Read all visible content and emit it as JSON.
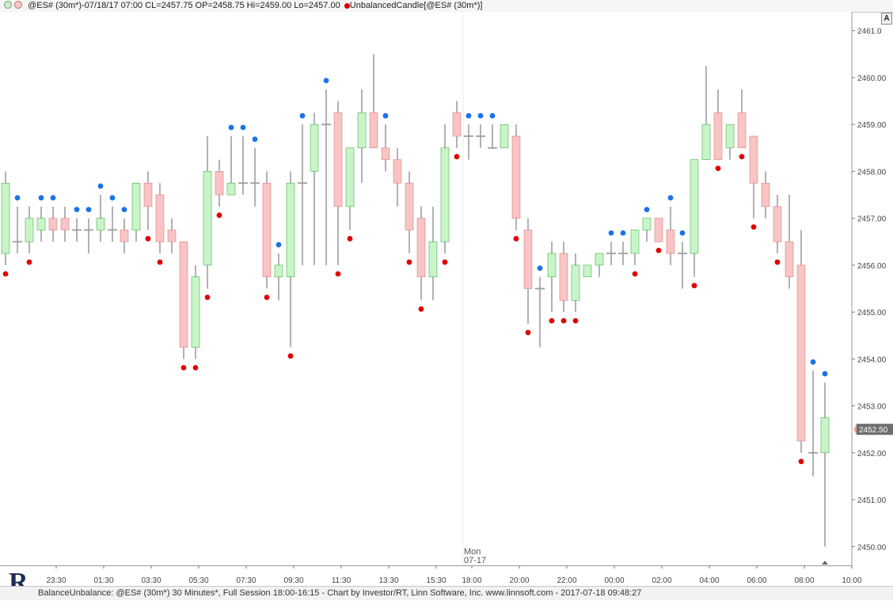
{
  "header": {
    "symbol_info": "@ES# (30m*)-07/18/17 07:00 CL=2457.75 OP=2458.75 Hi=2459.00 Lo=2457.00",
    "study_label": "UnbalancedCandle[@ES# (30m*)]",
    "status_dot_colors": [
      "#cfe8cf",
      "#f5c6c6"
    ],
    "study_dot_color": "#d90000"
  },
  "corner_button": "A",
  "footer": {
    "text": "BalanceUnbalance: @ES# (30m*) 30 Minutes*, Full Session 18:00-16:15 - Chart by Investor/RT, Linn Software, Inc. www.linnsoft.com - 2017-07-18 09:48:27"
  },
  "logo": {
    "letter": "R"
  },
  "colors": {
    "up_fill": "#c8f5c8",
    "up_border": "#4caf50",
    "down_fill": "#f8c4c4",
    "down_border": "#d98080",
    "wick": "#9e9e9e",
    "marker_high": "#1a73e8",
    "marker_low": "#e00000",
    "price_box": "#6e6e6e",
    "grid": "#e6e6e6"
  },
  "chart_data": {
    "type": "candlestick",
    "instrument": "@ES# (30m*)",
    "y_axis": {
      "min": 2449.6,
      "max": 2461.4,
      "ticks": [
        2461.0,
        2460.0,
        2459.0,
        2458.0,
        2457.0,
        2456.0,
        2455.0,
        2454.0,
        2453.0,
        2452.0,
        2451.0,
        2450.0
      ],
      "tick_labels": [
        "2461.0",
        "2460.00",
        "2459.00",
        "2458.00",
        "2457.00",
        "2456.00",
        "2455.00",
        "2454.00",
        "2453.00",
        "2452.00",
        "2451.00",
        "2450.00"
      ],
      "current_price": "2452.50",
      "current_value": 2452.5
    },
    "x_axis": {
      "tick_labels": [
        "23:30",
        "01:30",
        "03:30",
        "05:30",
        "07:30",
        "09:30",
        "11:30",
        "13:30",
        "15:30",
        "18:00",
        "20:00",
        "22:00",
        "00:00",
        "02:00",
        "04:00",
        "06:00",
        "08:00",
        "10:00"
      ],
      "tick_bar_index": [
        4,
        8,
        12,
        16,
        20,
        24,
        28,
        32,
        36,
        39,
        43,
        47,
        51,
        55,
        59,
        63,
        67,
        71
      ],
      "session_day": "Mon",
      "session_date": "07-17",
      "session_bar_index": 38
    },
    "candles": [
      {
        "o": 2456.25,
        "h": 2458.0,
        "l": 2456.0,
        "c": 2457.75,
        "m": "low"
      },
      {
        "o": 2456.5,
        "h": 2457.25,
        "l": 2456.25,
        "c": 2456.5,
        "m": "high"
      },
      {
        "o": 2456.5,
        "h": 2457.25,
        "l": 2456.25,
        "c": 2457.0,
        "m": "low"
      },
      {
        "o": 2456.75,
        "h": 2457.25,
        "l": 2456.5,
        "c": 2457.0,
        "m": "high"
      },
      {
        "o": 2457.0,
        "h": 2457.25,
        "l": 2456.5,
        "c": 2456.75,
        "m": "high"
      },
      {
        "o": 2457.0,
        "h": 2457.25,
        "l": 2456.5,
        "c": 2456.75,
        "m": ""
      },
      {
        "o": 2456.75,
        "h": 2457.0,
        "l": 2456.5,
        "c": 2456.75,
        "m": "high"
      },
      {
        "o": 2456.75,
        "h": 2457.0,
        "l": 2456.25,
        "c": 2456.75,
        "m": "high"
      },
      {
        "o": 2456.75,
        "h": 2457.5,
        "l": 2456.5,
        "c": 2457.0,
        "m": "high"
      },
      {
        "o": 2456.75,
        "h": 2457.25,
        "l": 2456.5,
        "c": 2456.75,
        "m": "high"
      },
      {
        "o": 2456.75,
        "h": 2457.0,
        "l": 2456.25,
        "c": 2456.5,
        "m": "high"
      },
      {
        "o": 2456.75,
        "h": 2457.75,
        "l": 2456.5,
        "c": 2457.75,
        "m": ""
      },
      {
        "o": 2457.75,
        "h": 2458.0,
        "l": 2456.75,
        "c": 2457.25,
        "m": "low"
      },
      {
        "o": 2457.5,
        "h": 2457.75,
        "l": 2456.25,
        "c": 2456.5,
        "m": "low"
      },
      {
        "o": 2456.75,
        "h": 2457.0,
        "l": 2456.25,
        "c": 2456.5,
        "m": ""
      },
      {
        "o": 2456.5,
        "h": 2456.5,
        "l": 2454.0,
        "c": 2454.25,
        "m": "low"
      },
      {
        "o": 2454.25,
        "h": 2456.0,
        "l": 2454.0,
        "c": 2455.75,
        "m": "low"
      },
      {
        "o": 2456.0,
        "h": 2458.75,
        "l": 2455.5,
        "c": 2458.0,
        "m": "low"
      },
      {
        "o": 2458.0,
        "h": 2458.25,
        "l": 2457.25,
        "c": 2457.5,
        "m": "low"
      },
      {
        "o": 2457.5,
        "h": 2458.75,
        "l": 2457.5,
        "c": 2457.75,
        "m": "high"
      },
      {
        "o": 2457.75,
        "h": 2458.75,
        "l": 2457.5,
        "c": 2457.75,
        "m": "high"
      },
      {
        "o": 2457.75,
        "h": 2458.5,
        "l": 2457.25,
        "c": 2457.75,
        "m": "high"
      },
      {
        "o": 2457.75,
        "h": 2458.0,
        "l": 2455.5,
        "c": 2455.75,
        "m": "low"
      },
      {
        "o": 2455.75,
        "h": 2456.25,
        "l": 2455.25,
        "c": 2456.0,
        "m": "high"
      },
      {
        "o": 2455.75,
        "h": 2458.0,
        "l": 2454.25,
        "c": 2457.75,
        "m": "low"
      },
      {
        "o": 2457.75,
        "h": 2459.0,
        "l": 2456.0,
        "c": 2457.75,
        "m": "high"
      },
      {
        "o": 2458.0,
        "h": 2459.25,
        "l": 2456.0,
        "c": 2459.0,
        "m": ""
      },
      {
        "o": 2459.0,
        "h": 2459.75,
        "l": 2456.0,
        "c": 2459.0,
        "m": "high"
      },
      {
        "o": 2459.25,
        "h": 2459.5,
        "l": 2456.0,
        "c": 2457.25,
        "m": "low"
      },
      {
        "o": 2457.25,
        "h": 2458.5,
        "l": 2456.75,
        "c": 2458.5,
        "m": "low"
      },
      {
        "o": 2458.5,
        "h": 2459.75,
        "l": 2457.75,
        "c": 2459.25,
        "m": ""
      },
      {
        "o": 2459.25,
        "h": 2460.5,
        "l": 2458.5,
        "c": 2458.5,
        "m": ""
      },
      {
        "o": 2458.5,
        "h": 2459.0,
        "l": 2458.0,
        "c": 2458.25,
        "m": "high"
      },
      {
        "o": 2458.25,
        "h": 2458.5,
        "l": 2457.25,
        "c": 2457.75,
        "m": ""
      },
      {
        "o": 2457.75,
        "h": 2458.0,
        "l": 2456.25,
        "c": 2456.75,
        "m": "low"
      },
      {
        "o": 2457.0,
        "h": 2457.25,
        "l": 2455.25,
        "c": 2455.75,
        "m": "low"
      },
      {
        "o": 2455.75,
        "h": 2457.25,
        "l": 2455.25,
        "c": 2456.5,
        "m": ""
      },
      {
        "o": 2456.5,
        "h": 2459.0,
        "l": 2456.25,
        "c": 2458.5,
        "m": "low"
      },
      {
        "o": 2459.25,
        "h": 2459.5,
        "l": 2458.5,
        "c": 2458.75,
        "m": "low"
      },
      {
        "o": 2458.75,
        "h": 2459.0,
        "l": 2458.25,
        "c": 2458.75,
        "m": "high"
      },
      {
        "o": 2458.75,
        "h": 2459.0,
        "l": 2458.5,
        "c": 2458.75,
        "m": "high"
      },
      {
        "o": 2458.5,
        "h": 2459.0,
        "l": 2458.5,
        "c": 2458.5,
        "m": "high"
      },
      {
        "o": 2458.5,
        "h": 2459.0,
        "l": 2458.5,
        "c": 2459.0,
        "m": ""
      },
      {
        "o": 2458.75,
        "h": 2459.0,
        "l": 2456.75,
        "c": 2457.0,
        "m": "low"
      },
      {
        "o": 2456.75,
        "h": 2457.0,
        "l": 2454.75,
        "c": 2455.5,
        "m": "low"
      },
      {
        "o": 2455.5,
        "h": 2455.75,
        "l": 2454.25,
        "c": 2455.5,
        "m": "high"
      },
      {
        "o": 2455.75,
        "h": 2456.5,
        "l": 2455.0,
        "c": 2456.25,
        "m": "low"
      },
      {
        "o": 2456.25,
        "h": 2456.5,
        "l": 2455.0,
        "c": 2455.25,
        "m": "low"
      },
      {
        "o": 2455.25,
        "h": 2456.25,
        "l": 2455.0,
        "c": 2456.0,
        "m": "low"
      },
      {
        "o": 2455.75,
        "h": 2456.0,
        "l": 2455.75,
        "c": 2456.0,
        "m": ""
      },
      {
        "o": 2456.0,
        "h": 2456.25,
        "l": 2455.75,
        "c": 2456.25,
        "m": ""
      },
      {
        "o": 2456.25,
        "h": 2456.5,
        "l": 2456.0,
        "c": 2456.25,
        "m": "high"
      },
      {
        "o": 2456.25,
        "h": 2456.5,
        "l": 2456.0,
        "c": 2456.25,
        "m": "high"
      },
      {
        "o": 2456.25,
        "h": 2456.75,
        "l": 2456.0,
        "c": 2456.75,
        "m": "low"
      },
      {
        "o": 2456.75,
        "h": 2457.0,
        "l": 2456.5,
        "c": 2457.0,
        "m": "high"
      },
      {
        "o": 2457.0,
        "h": 2457.0,
        "l": 2456.5,
        "c": 2456.5,
        "m": "low"
      },
      {
        "o": 2456.75,
        "h": 2457.25,
        "l": 2456.0,
        "c": 2456.25,
        "m": "high"
      },
      {
        "o": 2456.25,
        "h": 2456.5,
        "l": 2455.5,
        "c": 2456.25,
        "m": "high"
      },
      {
        "o": 2456.25,
        "h": 2458.25,
        "l": 2455.75,
        "c": 2458.25,
        "m": "low"
      },
      {
        "o": 2458.25,
        "h": 2460.25,
        "l": 2458.25,
        "c": 2459.0,
        "m": ""
      },
      {
        "o": 2459.25,
        "h": 2459.75,
        "l": 2458.25,
        "c": 2458.25,
        "m": "low"
      },
      {
        "o": 2458.5,
        "h": 2459.0,
        "l": 2458.25,
        "c": 2459.0,
        "m": ""
      },
      {
        "o": 2459.25,
        "h": 2459.75,
        "l": 2458.5,
        "c": 2458.5,
        "m": "low"
      },
      {
        "o": 2458.75,
        "h": 2458.75,
        "l": 2457.0,
        "c": 2457.75,
        "m": "low"
      },
      {
        "o": 2457.75,
        "h": 2458.0,
        "l": 2457.0,
        "c": 2457.25,
        "m": ""
      },
      {
        "o": 2457.25,
        "h": 2457.5,
        "l": 2456.25,
        "c": 2456.5,
        "m": "low"
      },
      {
        "o": 2456.5,
        "h": 2457.5,
        "l": 2455.5,
        "c": 2455.75,
        "m": ""
      },
      {
        "o": 2456.0,
        "h": 2456.75,
        "l": 2452.0,
        "c": 2452.25,
        "m": "low"
      },
      {
        "o": 2452.0,
        "h": 2453.75,
        "l": 2451.5,
        "c": 2452.0,
        "m": "high"
      },
      {
        "o": 2452.0,
        "h": 2453.5,
        "l": 2450.0,
        "c": 2452.75,
        "m": "high"
      }
    ]
  }
}
